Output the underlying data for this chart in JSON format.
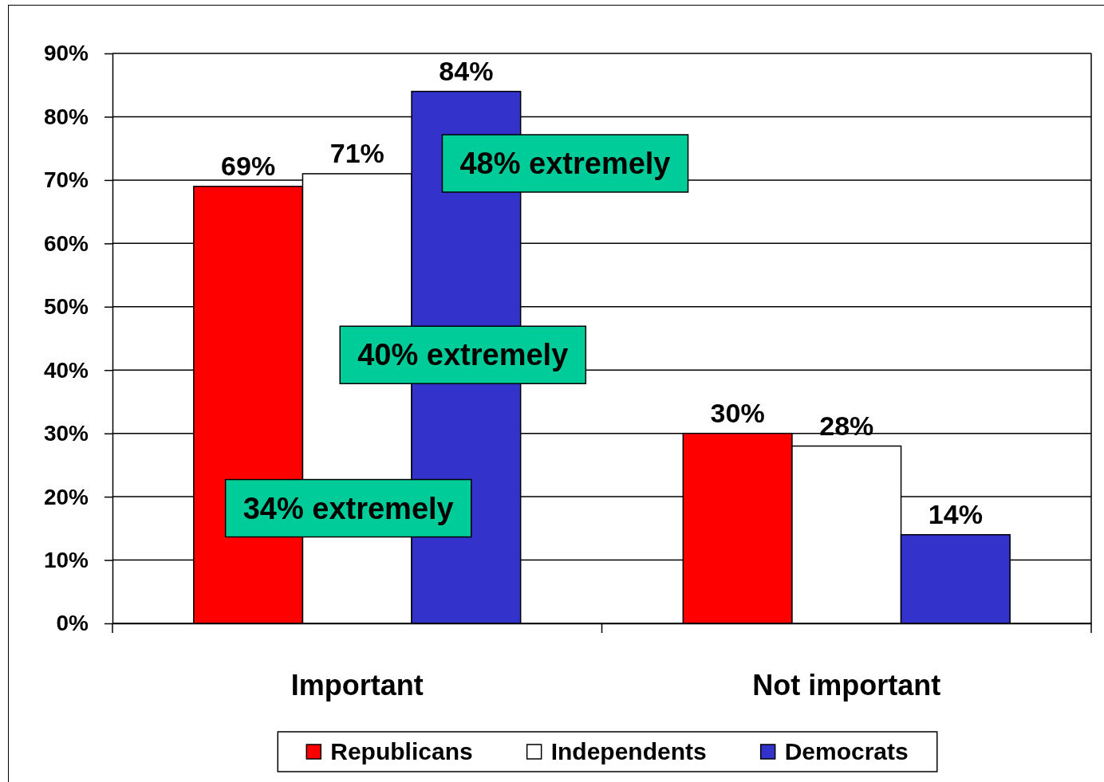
{
  "chart_data": {
    "type": "bar",
    "categories": [
      "Important",
      "Not important"
    ],
    "series": [
      {
        "name": "Republicans",
        "color": "#ff0000",
        "values": [
          69,
          30
        ],
        "value_labels": [
          "69%",
          "30%"
        ]
      },
      {
        "name": "Independents",
        "color": "#ffffff",
        "values": [
          71,
          28
        ],
        "value_labels": [
          "71%",
          "28%"
        ]
      },
      {
        "name": "Democrats",
        "color": "#3333cc",
        "values": [
          84,
          14
        ],
        "value_labels": [
          "84%",
          "14%"
        ]
      }
    ],
    "ylim": [
      0,
      90
    ],
    "yticks": [
      {
        "value": 0,
        "label": "0%"
      },
      {
        "value": 10,
        "label": "10%"
      },
      {
        "value": 20,
        "label": "20%"
      },
      {
        "value": 30,
        "label": "30%"
      },
      {
        "value": 40,
        "label": "40%"
      },
      {
        "value": 50,
        "label": "50%"
      },
      {
        "value": 60,
        "label": "60%"
      },
      {
        "value": 70,
        "label": "70%"
      },
      {
        "value": 80,
        "label": "80%"
      },
      {
        "value": 90,
        "label": "90%"
      }
    ],
    "grid": "y",
    "legend": "bottom",
    "annotations": [
      "34% extremely",
      "40% extremely",
      "48% extremely"
    ]
  }
}
